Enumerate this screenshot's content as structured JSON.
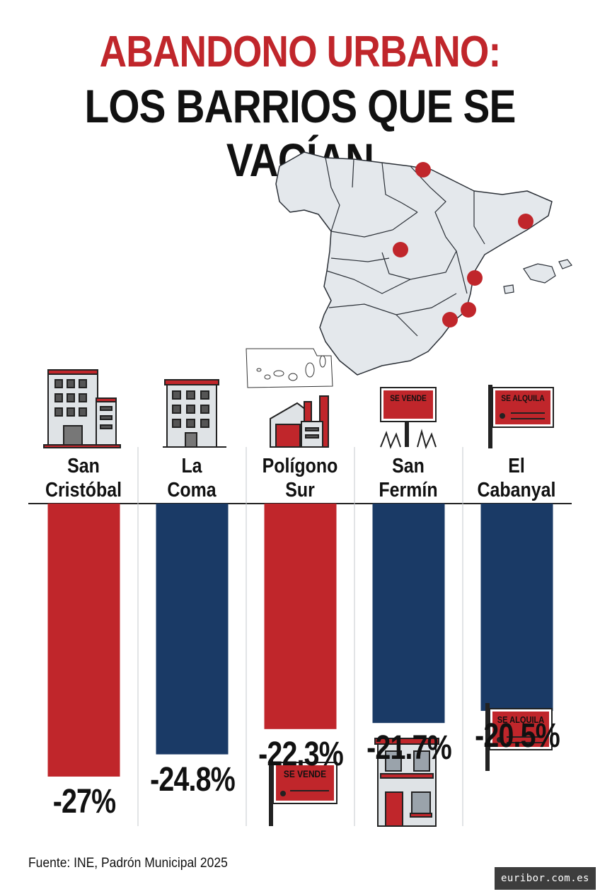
{
  "title": {
    "line1": "ABANDONO URBANO:",
    "line2": "LOS BARRIOS QUE SE VACÍAN"
  },
  "chart_data": {
    "type": "bar",
    "categories": [
      "San Cristóbal",
      "La Coma",
      "Polígono Sur",
      "San Fermín",
      "El Cabanyal"
    ],
    "category_lines": [
      [
        "San",
        "Cristóbal"
      ],
      [
        "La",
        "Coma"
      ],
      [
        "Polígono",
        "Sur"
      ],
      [
        "San",
        "Fermín"
      ],
      [
        "El",
        "Cabanyal"
      ]
    ],
    "values": [
      -27,
      -24.8,
      -22.3,
      -21.7,
      -20.5
    ],
    "value_labels": [
      "-27%",
      "-24.8%",
      "-22.3%",
      "-21.7%",
      "-20.5%"
    ],
    "bar_colors": [
      "#c0262b",
      "#1a3a66",
      "#c0262b",
      "#1a3a66",
      "#1a3a66"
    ],
    "ylim": [
      -30,
      0
    ],
    "grid": false
  },
  "signs": {
    "se_vende": "SE VENDE",
    "se_alquila": "SE ALQUILA"
  },
  "source": "Fuente: INE, Padrón Municipal 2025",
  "brand": "euribor.com.es",
  "colors": {
    "accent_red": "#c0262b",
    "navy": "#1a3a66",
    "map_fill": "#e4e8ec"
  }
}
